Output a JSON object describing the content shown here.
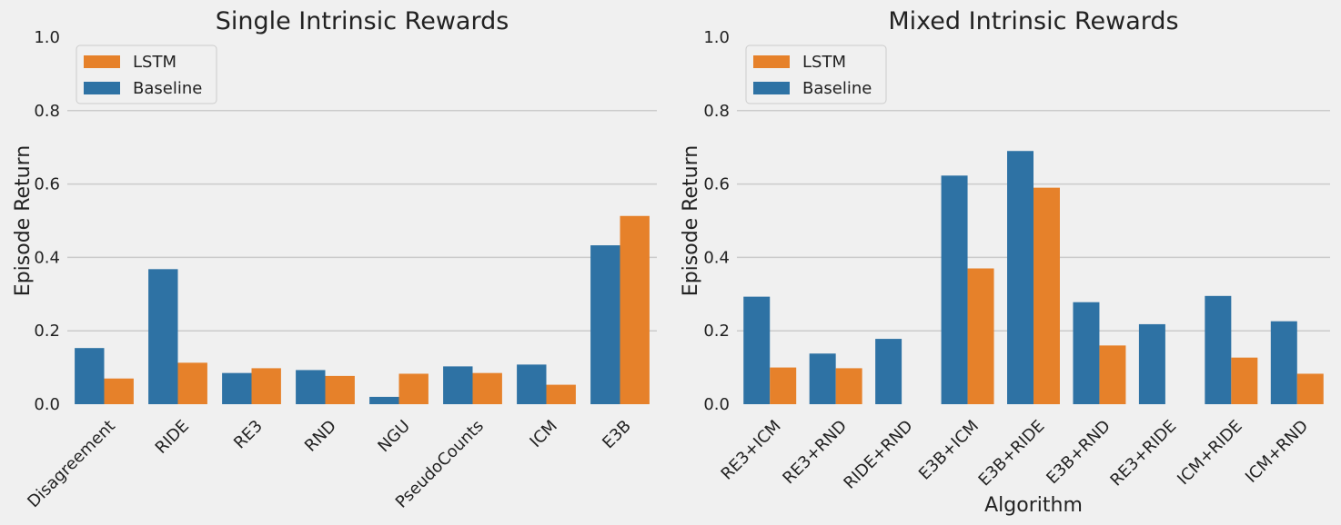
{
  "colors": {
    "lstm": "#e6812a",
    "baseline": "#2e72a4",
    "background": "#f0f0f0",
    "grid": "#cbcbcb"
  },
  "chart_data": [
    {
      "type": "bar",
      "title": "Single Intrinsic Rewards",
      "xlabel": "",
      "ylabel": "Episode Return",
      "ylim": [
        0,
        1.0
      ],
      "yticks": [
        "0.0",
        "0.2",
        "0.4",
        "0.6",
        "0.8",
        "1.0"
      ],
      "grid": true,
      "legend_position": "top-left",
      "legend": [
        "LSTM",
        "Baseline"
      ],
      "categories": [
        "Disagreement",
        "RIDE",
        "RE3",
        "RND",
        "NGU",
        "PseudoCounts",
        "ICM",
        "E3B"
      ],
      "series": [
        {
          "name": "Baseline",
          "values": [
            0.153,
            0.368,
            0.085,
            0.093,
            0.02,
            0.103,
            0.108,
            0.433
          ]
        },
        {
          "name": "LSTM",
          "values": [
            0.07,
            0.113,
            0.098,
            0.077,
            0.083,
            0.085,
            0.053,
            0.513
          ]
        }
      ]
    },
    {
      "type": "bar",
      "title": "Mixed Intrinsic Rewards",
      "xlabel": "Algorithm",
      "ylabel": "Episode Return",
      "ylim": [
        0,
        1.0
      ],
      "yticks": [
        "0.0",
        "0.2",
        "0.4",
        "0.6",
        "0.8",
        "1.0"
      ],
      "grid": true,
      "legend_position": "top-left",
      "legend": [
        "LSTM",
        "Baseline"
      ],
      "categories": [
        "RE3+ICM",
        "RE3+RND",
        "RIDE+RND",
        "E3B+ICM",
        "E3B+RIDE",
        "E3B+RND",
        "RE3+RIDE",
        "ICM+RIDE",
        "ICM+RND"
      ],
      "series": [
        {
          "name": "Baseline",
          "values": [
            0.293,
            0.138,
            0.178,
            0.623,
            0.69,
            0.278,
            0.218,
            0.295,
            0.226
          ]
        },
        {
          "name": "LSTM",
          "values": [
            0.1,
            0.098,
            0.0,
            0.37,
            0.59,
            0.16,
            0.0,
            0.127,
            0.083
          ]
        }
      ]
    }
  ]
}
